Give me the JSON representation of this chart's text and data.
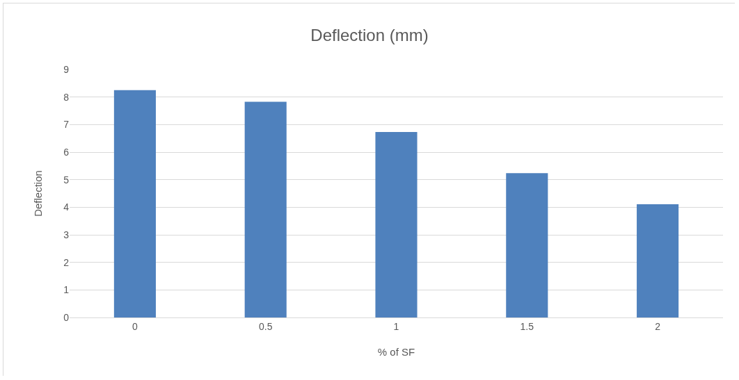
{
  "chart_data": {
    "type": "bar",
    "title": "Deflection (mm)",
    "xlabel": "% of SF",
    "ylabel": "Deflection",
    "categories": [
      "0",
      "0.5",
      "1",
      "1.5",
      "2"
    ],
    "values": [
      8.25,
      7.83,
      6.73,
      5.24,
      4.11
    ],
    "color": "#4f81bd",
    "ylim": [
      0,
      9
    ],
    "yticks": [
      0,
      1,
      2,
      3,
      4,
      5,
      6,
      7,
      8,
      9
    ],
    "grid": "y",
    "legend": false
  }
}
